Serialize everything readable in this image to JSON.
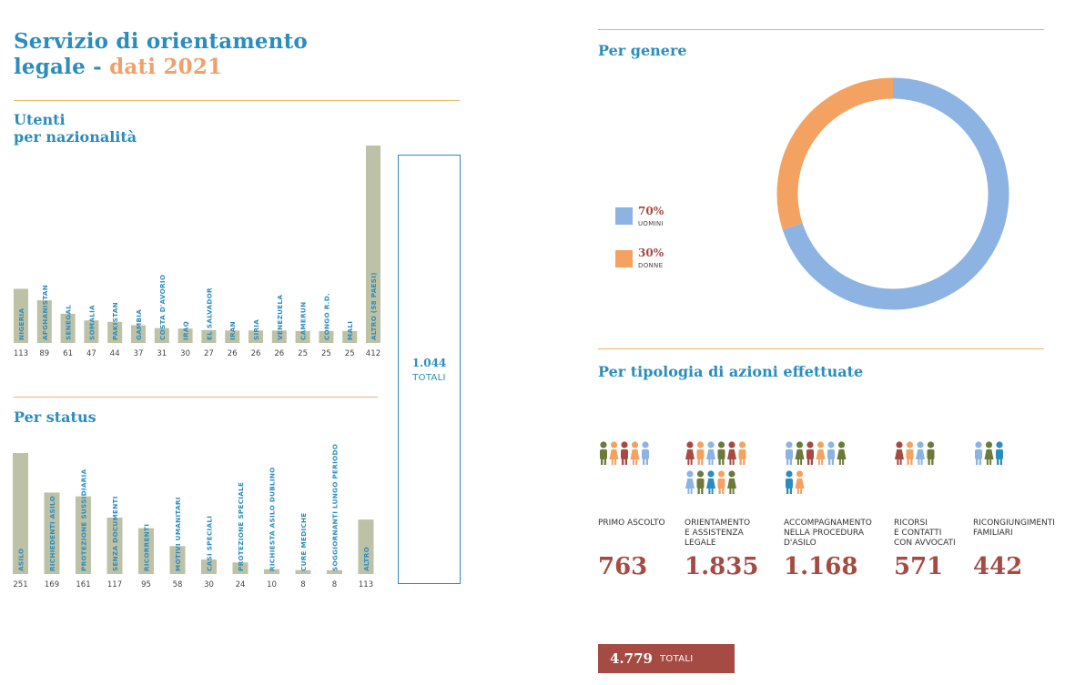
{
  "header": {
    "title_line1": "Servizio di orientamento",
    "title_line2_prefix": "legale - ",
    "title_line2_accent": "dati 2021"
  },
  "nazionalita": {
    "heading_line1": "Utenti",
    "heading_line2": "per nazionalità"
  },
  "status": {
    "heading": "Per status"
  },
  "totale_utenti": {
    "value": "1.044",
    "label": "TOTALI"
  },
  "genere": {
    "heading": "Per genere",
    "legend": [
      {
        "pct": "70%",
        "label": "UOMINI",
        "color": "#8db3e2"
      },
      {
        "pct": "30%",
        "label": "DONNE",
        "color": "#f4a261"
      }
    ]
  },
  "azioni": {
    "heading": "Per tipologia di azioni effettuate",
    "items": [
      {
        "label_lines": [
          "PRIMO ASCOLTO"
        ],
        "value": "763",
        "icons": 5
      },
      {
        "label_lines": [
          "ORIENTAMENTO",
          "E ASSISTENZA",
          "LEGALE"
        ],
        "value": "1.835",
        "icons": 11
      },
      {
        "label_lines": [
          "ACCOMPAGNAMENTO",
          "NELLA PROCEDURA",
          "D'ASILO"
        ],
        "value": "1.168",
        "icons": 8
      },
      {
        "label_lines": [
          "RICORSI",
          "E CONTATTI",
          "CON AVVOCATI"
        ],
        "value": "571",
        "icons": 4
      },
      {
        "label_lines": [
          "RICONGIUNGIMENTI",
          "FAMILIARI"
        ],
        "value": "442",
        "icons": 3
      }
    ],
    "total_value": "4.779",
    "total_label": "TOTALI"
  },
  "palette": {
    "blue": "#2b8cbe",
    "accent_orange": "#f0a06a",
    "bar": "#bdc1a6",
    "rule": "#e7b76a",
    "red": "#a64b43",
    "people": [
      "#6b7a3a",
      "#f4a261",
      "#a64b43",
      "#8db3e2",
      "#2b8cbe"
    ]
  },
  "chart_data": [
    {
      "type": "bar",
      "categories": [
        "NIGERIA",
        "AFGHANISTAN",
        "SENEGAL",
        "SOMALIA",
        "PAKISTAN",
        "GAMBIA",
        "COSTA D'AVORIO",
        "IRAQ",
        "EL SALVADOR",
        "IRAN",
        "SIRIA",
        "VENEZUELA",
        "CAMERUN",
        "CONGO R.D.",
        "MALI",
        "ALTRO (58 PAESI)"
      ],
      "values": [
        113,
        89,
        61,
        47,
        44,
        37,
        31,
        30,
        27,
        26,
        26,
        26,
        25,
        25,
        25,
        412
      ],
      "title": "Utenti per nazionalità"
    },
    {
      "type": "bar",
      "categories": [
        "ASILO",
        "RICHIEDENTI ASILO",
        "PROTEZIONE SUSSIDIARIA",
        "SENZA DOCUMENTI",
        "RICORRENTI",
        "MOTIVI UMANITARI",
        "CASI SPECIALI",
        "PROTEZIONE SPECIALE",
        "RICHIESTA ASILO DUBLINO",
        "CURE MEDICHE",
        "SOGGIORNANTI LUNGO PERIODO",
        "ALTRO"
      ],
      "values": [
        251,
        169,
        161,
        117,
        95,
        58,
        30,
        24,
        10,
        8,
        8,
        113
      ],
      "title": "Per status"
    },
    {
      "type": "pie",
      "title": "Per genere",
      "categories": [
        "UOMINI",
        "DONNE"
      ],
      "values": [
        70,
        30
      ]
    }
  ]
}
